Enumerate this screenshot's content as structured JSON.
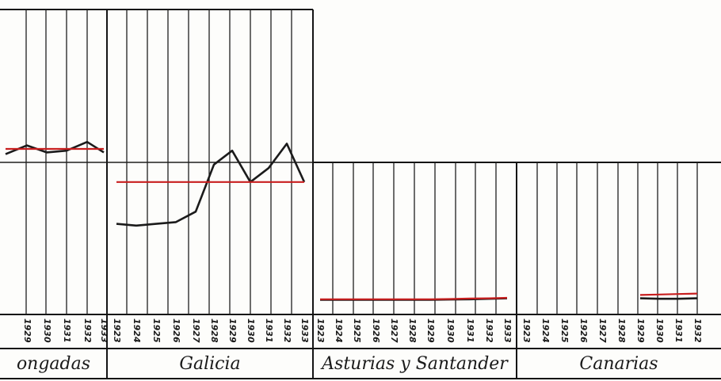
{
  "chart_data": [
    {
      "type": "line",
      "region": "ongadas",
      "x": [
        "",
        "1929",
        "1930",
        "1931",
        "1932",
        "1933"
      ],
      "series": [
        {
          "values": [
            0.92,
            0.97,
            0.93,
            0.94,
            0.99,
            0.93
          ]
        },
        {
          "values": [
            0.95,
            0.95,
            0.95,
            0.95,
            0.95,
            0.95
          ]
        }
      ]
    },
    {
      "type": "line",
      "region": "Galicia",
      "x": [
        "1923",
        "1924",
        "1925",
        "1926",
        "1927",
        "1928",
        "1929",
        "1930",
        "1931",
        "1932",
        "1933"
      ],
      "series": [
        {
          "values": [
            0.52,
            0.51,
            0.52,
            0.53,
            0.59,
            0.86,
            0.94,
            0.76,
            0.84,
            0.98,
            0.76
          ]
        },
        {
          "values": [
            0.76,
            0.76,
            0.76,
            0.76,
            0.76,
            0.76,
            0.76,
            0.76,
            0.76,
            0.76,
            0.76
          ]
        }
      ]
    },
    {
      "type": "line",
      "region": "Asturias y Santander",
      "x": [
        "1923",
        "1924",
        "1925",
        "1926",
        "1927",
        "1928",
        "1929",
        "1930",
        "1931",
        "1932",
        "1933"
      ],
      "series": [
        {
          "values": [
            0.62,
            0.62,
            0.62,
            0.62,
            0.62,
            0.62,
            0.62,
            0.63,
            0.64,
            0.66,
            0.68
          ]
        },
        {
          "values": [
            0.64,
            0.64,
            0.64,
            0.64,
            0.64,
            0.64,
            0.64,
            0.65,
            0.67,
            0.68,
            0.7
          ]
        }
      ]
    },
    {
      "type": "line",
      "region": "Canarias",
      "x": [
        "1923",
        "1924",
        "1925",
        "1926",
        "1927",
        "1928",
        "1929",
        "1930",
        "1931",
        "1932"
      ],
      "series": [
        {
          "values": [
            null,
            null,
            null,
            null,
            null,
            null,
            0.68,
            0.66,
            0.66,
            0.68
          ]
        },
        {
          "values": [
            null,
            null,
            null,
            null,
            null,
            null,
            0.82,
            0.84,
            0.86,
            0.88
          ]
        }
      ]
    }
  ],
  "colors": {
    "line": "#1b1b1b",
    "reference": "#c81e1e",
    "grid": "#1e1e1e"
  }
}
